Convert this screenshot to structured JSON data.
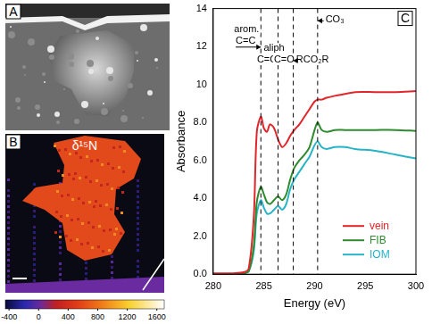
{
  "panel_a": {
    "label": "A"
  },
  "panel_b": {
    "label": "B",
    "title": "δ¹⁵N",
    "colorbar": {
      "range": [
        -450,
        1700
      ],
      "ticks": [
        -400,
        0,
        400,
        800,
        1200,
        1600
      ]
    }
  },
  "chart_data": {
    "type": "line",
    "panel_label": "C",
    "x_label": "Energy (eV)",
    "y_label": "Absorbance",
    "x": [
      280,
      281,
      282,
      283,
      283.5,
      284,
      284.3,
      284.7,
      285,
      285.3,
      285.6,
      286,
      286.4,
      286.8,
      287.2,
      287.6,
      288,
      288.5,
      289,
      289.5,
      290,
      290.3,
      290.7,
      291.2,
      292,
      293,
      294,
      296,
      298,
      300
    ],
    "series": [
      {
        "name": "vein",
        "color": "#e0262b",
        "values": [
          0.05,
          0.05,
          0.05,
          0.1,
          0.3,
          3.0,
          7.5,
          8.3,
          7.7,
          7.5,
          7.9,
          7.7,
          7.1,
          6.7,
          6.9,
          7.3,
          7.6,
          7.9,
          8.3,
          8.7,
          9.1,
          9.2,
          9.2,
          9.3,
          9.4,
          9.5,
          9.6,
          9.6,
          9.6,
          9.65
        ]
      },
      {
        "name": "FIB",
        "color": "#2e8b2e",
        "values": [
          0,
          0,
          0,
          0.05,
          0.15,
          1.5,
          3.8,
          4.6,
          4.2,
          3.8,
          3.7,
          3.9,
          4.1,
          3.9,
          4.2,
          5.0,
          5.6,
          6.0,
          6.3,
          6.7,
          7.6,
          8.0,
          7.6,
          7.5,
          7.6,
          7.6,
          7.6,
          7.6,
          7.6,
          7.55
        ]
      },
      {
        "name": "IOM",
        "color": "#26b3c6",
        "values": [
          0,
          0,
          0,
          0.05,
          0.15,
          1.2,
          3.2,
          3.9,
          3.5,
          3.2,
          3.2,
          3.4,
          3.6,
          3.4,
          3.7,
          4.5,
          5.0,
          5.4,
          5.8,
          6.2,
          6.8,
          7.0,
          6.7,
          6.6,
          6.7,
          6.7,
          6.6,
          6.5,
          6.3,
          6.1
        ]
      }
    ],
    "xlim": [
      280,
      300
    ],
    "xticks": [
      280,
      285,
      290,
      295,
      300
    ],
    "ylim": [
      0,
      14
    ],
    "yticks": [
      {
        "value": 0,
        "label": "0.0"
      },
      {
        "value": 2,
        "label": "2.0"
      },
      {
        "value": 4,
        "label": "4.0"
      },
      {
        "value": 6,
        "label": "6.0"
      },
      {
        "value": 8,
        "label": "8.0"
      },
      10,
      12,
      14
    ],
    "reference_lines": [
      284.7,
      286.4,
      287.9,
      290.3
    ],
    "annotations": [
      {
        "text": "arom.",
        "x": 283.3,
        "y": 12.9
      },
      {
        "text": "C=C",
        "x": 283.2,
        "y": 12.3,
        "arrow_to": 284.7
      },
      {
        "text": "aliph",
        "x": 286.0,
        "y": 11.9
      },
      {
        "text": "C=C",
        "x": 285.3,
        "y": 11.3
      },
      {
        "text": "C=O",
        "x": 287.0,
        "y": 11.3
      },
      {
        "text": "RCO₂R",
        "x": 289.8,
        "y": 11.3,
        "arrow_to": 287.9
      },
      {
        "text": "CO₃",
        "x": 292.0,
        "y": 13.4,
        "arrow_to": 290.3
      }
    ],
    "grid": false,
    "legend": "lower right"
  }
}
